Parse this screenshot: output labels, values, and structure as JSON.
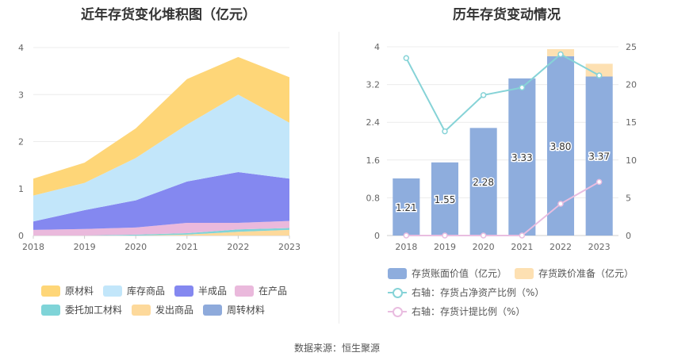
{
  "source": "数据来源：恒生聚源",
  "chart_data": [
    {
      "type": "area",
      "title": "近年存货变化堆积图（亿元）",
      "x": [
        "2018",
        "2019",
        "2020",
        "2021",
        "2022",
        "2023"
      ],
      "ylim": [
        0,
        4
      ],
      "yticks": [
        "0",
        "1",
        "2",
        "3",
        "4"
      ],
      "stacked": true,
      "series": [
        {
          "name": "周转材料",
          "color": "#8eaadb",
          "values": [
            0.0,
            0.0,
            0.0,
            0.0,
            0.0,
            0.0
          ]
        },
        {
          "name": "发出商品",
          "color": "#fdd99b",
          "values": [
            0.0,
            0.0,
            0.0,
            0.02,
            0.08,
            0.12
          ]
        },
        {
          "name": "委托加工材料",
          "color": "#7fd4d8",
          "values": [
            0.0,
            0.0,
            0.02,
            0.03,
            0.05,
            0.04
          ]
        },
        {
          "name": "在产品",
          "color": "#eab9dc",
          "values": [
            0.12,
            0.14,
            0.15,
            0.22,
            0.14,
            0.15
          ]
        },
        {
          "name": "半成品",
          "color": "#8488f0",
          "values": [
            0.18,
            0.4,
            0.58,
            0.88,
            1.08,
            0.9
          ]
        },
        {
          "name": "库存商品",
          "color": "#c2e6fa",
          "values": [
            0.55,
            0.58,
            0.9,
            1.21,
            1.65,
            1.19
          ]
        },
        {
          "name": "原材料",
          "color": "#fed678",
          "values": [
            0.36,
            0.43,
            0.63,
            0.97,
            0.8,
            0.97
          ]
        }
      ],
      "legend_order": [
        "原材料",
        "库存商品",
        "半成品",
        "在产品",
        "委托加工材料",
        "发出商品",
        "周转材料"
      ],
      "legend_position": "bottom"
    },
    {
      "type": "bar",
      "title": "历年存货变动情况",
      "categories": [
        "2018",
        "2019",
        "2020",
        "2021",
        "2022",
        "2023"
      ],
      "ylim_left": [
        0,
        4
      ],
      "yticks_left": [
        "0",
        "0.8",
        "1.6",
        "2.4",
        "3.2",
        "4"
      ],
      "ylim_right": [
        0,
        25
      ],
      "yticks_right": [
        "0",
        "5",
        "10",
        "15",
        "20",
        "25"
      ],
      "bars": [
        {
          "name": "存货账面价值（亿元）",
          "color": "#8eaddd",
          "values": [
            1.21,
            1.55,
            2.28,
            3.33,
            3.8,
            3.37
          ],
          "labels": [
            "1.21",
            "1.55",
            "2.28",
            "3.33",
            "3.80",
            "3.37"
          ]
        },
        {
          "name": "存货跌价准备（亿元）",
          "color": "#fde0b2",
          "values": [
            0.0,
            0.0,
            0.0,
            0.0,
            0.15,
            0.27
          ]
        }
      ],
      "lines": [
        {
          "name": "右轴：存货占净资产比例（%）",
          "color": "#86d3d7",
          "axis": "right",
          "values": [
            23.5,
            13.8,
            18.6,
            19.6,
            24.0,
            21.2
          ]
        },
        {
          "name": "右轴：存货计提比例（%）",
          "color": "#e9bde0",
          "axis": "right",
          "values": [
            0.0,
            0.0,
            0.0,
            0.0,
            4.2,
            7.1
          ]
        }
      ],
      "legend_position": "bottom"
    }
  ]
}
